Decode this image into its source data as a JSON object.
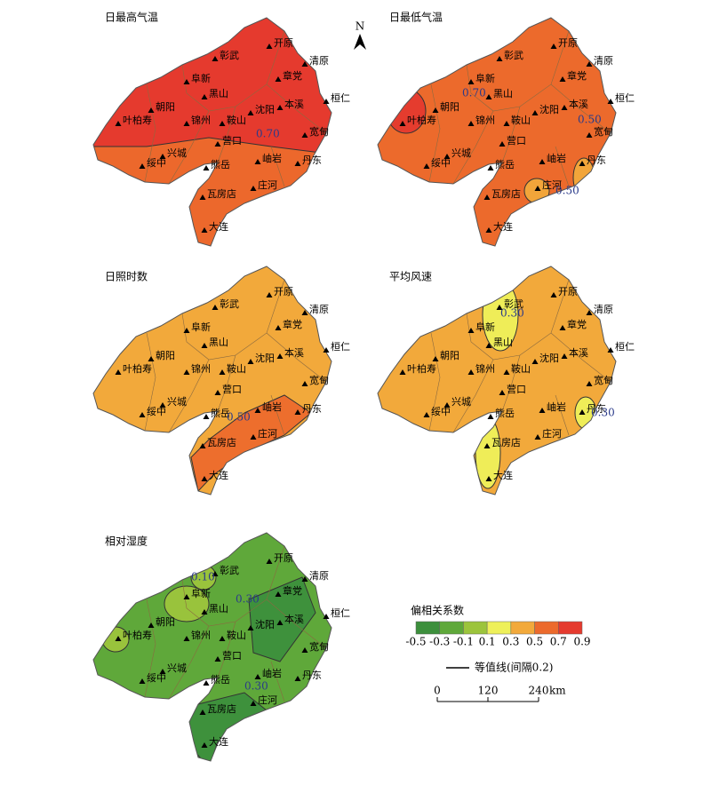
{
  "north": "N",
  "panels": [
    {
      "title": "日最高气温",
      "contour_labels": [
        "0.70"
      ]
    },
    {
      "title": "日最低气温",
      "contour_labels": [
        "0.70",
        "0.50",
        "0.50"
      ]
    },
    {
      "title": "日照时数",
      "contour_labels": [
        "0.50"
      ]
    },
    {
      "title": "平均风速",
      "contour_labels": [
        "0.30",
        "0.30"
      ]
    },
    {
      "title": "相对湿度",
      "contour_labels": [
        "0.10",
        "0.30",
        "0.30"
      ]
    }
  ],
  "stations": [
    "开原",
    "彰武",
    "清原",
    "阜新",
    "章党",
    "黑山",
    "桓仁",
    "朝阳",
    "本溪",
    "叶柏寿",
    "锦州",
    "鞍山",
    "沈阳",
    "宽甸",
    "营口",
    "兴城",
    "绥中",
    "熊岳",
    "岫岩",
    "丹东",
    "庄河",
    "瓦房店",
    "大连"
  ],
  "legend": {
    "title": "偏相关系数",
    "ticks": [
      -0.5,
      -0.3,
      -0.1,
      0.1,
      0.3,
      0.5,
      0.7,
      0.9
    ],
    "colors": [
      "#3c8f3c",
      "#5fa83a",
      "#9cc43c",
      "#eef05a",
      "#f2a93b",
      "#ec6a2c",
      "#e53a2e"
    ]
  },
  "contour_legend": "等值线(间隔0.2)",
  "scale": {
    "ticks": [
      0,
      120,
      240
    ],
    "unit": "km"
  }
}
